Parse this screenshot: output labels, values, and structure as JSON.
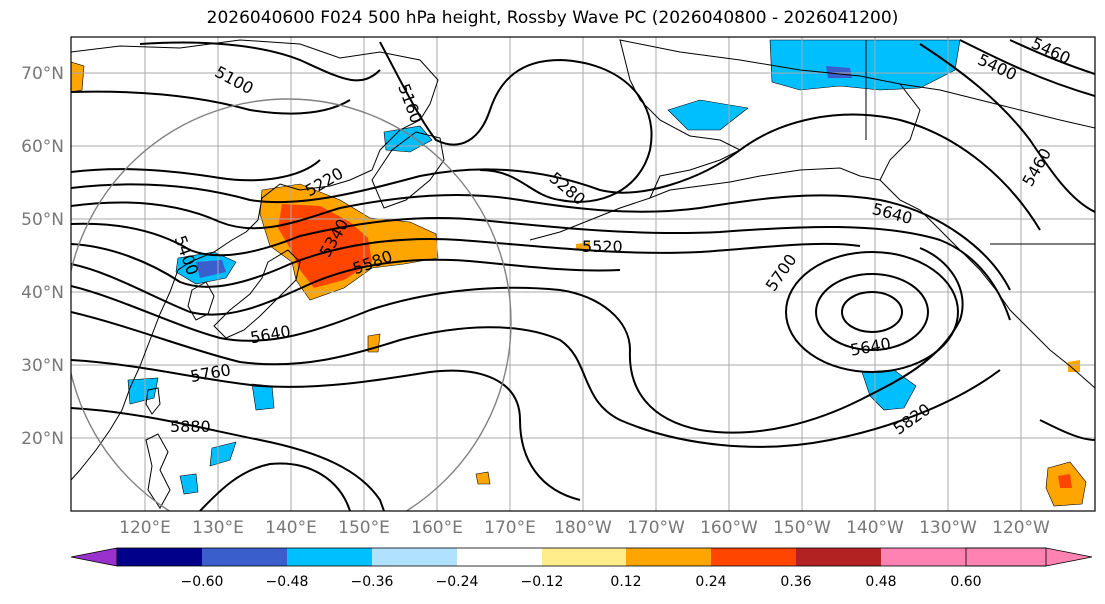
{
  "title": "2026040600 F024 500 hPa height, Rossby Wave PC (2026040800 - 2026041200)",
  "lat_labels": [
    "70°N",
    "60°N",
    "50°N",
    "40°N",
    "30°N",
    "20°N"
  ],
  "lon_labels": [
    "120°E",
    "130°E",
    "140°E",
    "150°E",
    "160°E",
    "170°E",
    "180°W",
    "170°W",
    "160°W",
    "150°W",
    "140°W",
    "130°W",
    "120°W"
  ],
  "contour_labels": [
    "5100",
    "5160",
    "5220",
    "5280",
    "5340",
    "5400",
    "5460",
    "5520",
    "5580",
    "5640",
    "5700",
    "5640",
    "5760",
    "5820",
    "5880",
    "5400",
    "5460",
    "5640"
  ],
  "colorbar": {
    "ticks": [
      "−0.60",
      "−0.48",
      "−0.36",
      "−0.24",
      "−0.12",
      "0.12",
      "0.24",
      "0.36",
      "0.48",
      "0.60"
    ],
    "colors": [
      "#9932cc",
      "#00008b",
      "#3a5fcd",
      "#00bfff",
      "#b0e2ff",
      "#ffffff",
      "#ffec8b",
      "#ffa500",
      "#ff4500",
      "#b22222",
      "#ff83b2"
    ]
  },
  "colors": {
    "neg_light": "#00bfff",
    "neg_mid": "#3a5fcd",
    "pos_light": "#ffa500",
    "pos_mid": "#ff4500",
    "grid": "#aaaaaa",
    "circle": "#808080"
  }
}
